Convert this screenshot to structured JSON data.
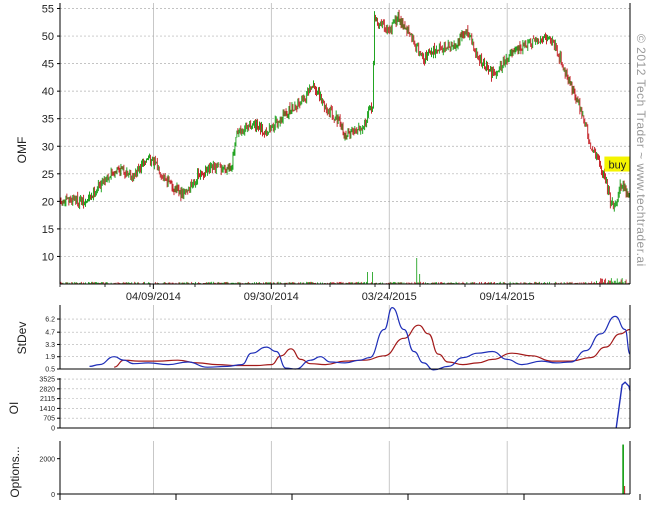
{
  "watermark": "© 2012 Tech Trader ~ www.techtrader.ai",
  "colors": {
    "up": "#0a9a0a",
    "down": "#c0141a",
    "grid": "#b0b0b0",
    "stdev_fast": "#1f2fb8",
    "stdev_slow": "#a31a1a",
    "oi": "#1f2fb8",
    "options": "#0a9a0a",
    "buy_fill": "#f4f400"
  },
  "chart_data": [
    {
      "type": "line",
      "panel": "price",
      "ylabel": "OMF",
      "ylim": [
        5,
        56
      ],
      "yticks": [
        10,
        15,
        20,
        25,
        30,
        35,
        40,
        45,
        50,
        55
      ],
      "x_tick_labels": [
        "04/09/2014",
        "09/30/2014",
        "03/24/2015",
        "09/14/2015"
      ],
      "x_tick_index": [
        95,
        215,
        335,
        455
      ],
      "n_days": 580,
      "price_path": [
        [
          0,
          19.5
        ],
        [
          15,
          20.5
        ],
        [
          25,
          19.5
        ],
        [
          45,
          24
        ],
        [
          60,
          26
        ],
        [
          75,
          24.5
        ],
        [
          90,
          28
        ],
        [
          100,
          26
        ],
        [
          115,
          22.5
        ],
        [
          125,
          21
        ],
        [
          140,
          24.5
        ],
        [
          155,
          26
        ],
        [
          170,
          26
        ],
        [
          175,
          27
        ],
        [
          180,
          32
        ],
        [
          195,
          34
        ],
        [
          210,
          32.5
        ],
        [
          230,
          36
        ],
        [
          250,
          39
        ],
        [
          258,
          41
        ],
        [
          270,
          37
        ],
        [
          282,
          35
        ],
        [
          290,
          32
        ],
        [
          300,
          33
        ],
        [
          310,
          34
        ],
        [
          318,
          37.5
        ],
        [
          320,
          53
        ],
        [
          335,
          51
        ],
        [
          345,
          53.5
        ],
        [
          360,
          49
        ],
        [
          370,
          46
        ],
        [
          385,
          48
        ],
        [
          400,
          48
        ],
        [
          415,
          51
        ],
        [
          425,
          46
        ],
        [
          440,
          43
        ],
        [
          455,
          46
        ],
        [
          470,
          48
        ],
        [
          485,
          49
        ],
        [
          495,
          50
        ],
        [
          505,
          48
        ],
        [
          515,
          43
        ],
        [
          525,
          39
        ],
        [
          533,
          35
        ],
        [
          540,
          30
        ],
        [
          550,
          26
        ],
        [
          555,
          24
        ],
        [
          560,
          20
        ],
        [
          565,
          19
        ],
        [
          570,
          23
        ],
        [
          580,
          21
        ]
      ],
      "event_label": "buy",
      "event_index": 557,
      "event_price": 26.5
    },
    {
      "type": "line",
      "panel": "stdev",
      "ylabel": "StDev",
      "ylim": [
        0.5,
        7.8
      ],
      "yticks": [
        "6.2",
        "4.7",
        "3.3",
        "1.9",
        "0.5"
      ],
      "series": [
        {
          "name": "",
          "points": [
            [
              30,
              0.8
            ],
            [
              40,
              1.0
            ],
            [
              55,
              1.9
            ],
            [
              65,
              1.5
            ],
            [
              75,
              1.1
            ],
            [
              90,
              1.2
            ],
            [
              110,
              1.0
            ],
            [
              130,
              1.3
            ],
            [
              150,
              0.7
            ],
            [
              170,
              0.8
            ],
            [
              185,
              1.0
            ],
            [
              195,
              2.3
            ],
            [
              210,
              3.0
            ],
            [
              220,
              2.5
            ],
            [
              230,
              0.6
            ],
            [
              240,
              0.5
            ],
            [
              255,
              1.5
            ],
            [
              265,
              1.9
            ],
            [
              275,
              1.3
            ],
            [
              290,
              1.2
            ],
            [
              305,
              1.5
            ],
            [
              315,
              1.8
            ],
            [
              330,
              5.0
            ],
            [
              338,
              7.5
            ],
            [
              350,
              5.0
            ],
            [
              360,
              2.5
            ],
            [
              370,
              1.2
            ],
            [
              380,
              0.4
            ],
            [
              395,
              0.8
            ],
            [
              410,
              1.8
            ],
            [
              425,
              2.3
            ],
            [
              440,
              2.5
            ],
            [
              455,
              1.6
            ],
            [
              470,
              1.0
            ],
            [
              490,
              1.4
            ],
            [
              505,
              1.2
            ],
            [
              520,
              1.3
            ],
            [
              535,
              2.6
            ],
            [
              550,
              4.5
            ],
            [
              565,
              6.5
            ],
            [
              575,
              5.0
            ],
            [
              580,
              2.2
            ]
          ]
        },
        {
          "name": "",
          "points": [
            [
              55,
              0.7
            ],
            [
              65,
              1.5
            ],
            [
              80,
              1.4
            ],
            [
              100,
              1.4
            ],
            [
              120,
              1.5
            ],
            [
              140,
              1.2
            ],
            [
              160,
              1.0
            ],
            [
              180,
              0.9
            ],
            [
              200,
              0.9
            ],
            [
              215,
              1.0
            ],
            [
              225,
              2.0
            ],
            [
              235,
              2.8
            ],
            [
              245,
              1.6
            ],
            [
              255,
              1.1
            ],
            [
              270,
              1.0
            ],
            [
              290,
              1.4
            ],
            [
              310,
              1.5
            ],
            [
              330,
              2.0
            ],
            [
              350,
              4.0
            ],
            [
              365,
              5.5
            ],
            [
              375,
              4.5
            ],
            [
              385,
              2.2
            ],
            [
              395,
              1.3
            ],
            [
              410,
              1.0
            ],
            [
              425,
              1.2
            ],
            [
              440,
              1.6
            ],
            [
              460,
              2.3
            ],
            [
              480,
              2.0
            ],
            [
              500,
              1.4
            ],
            [
              520,
              1.4
            ],
            [
              540,
              1.8
            ],
            [
              555,
              3.0
            ],
            [
              570,
              4.5
            ],
            [
              580,
              5.0
            ]
          ]
        }
      ]
    },
    {
      "type": "line",
      "panel": "oi",
      "ylabel": "OI",
      "ylim": [
        0,
        3600
      ],
      "yticks": [
        "3525",
        "2820",
        "2115",
        "1410",
        "705",
        "0"
      ],
      "series": [
        {
          "name": "",
          "points": [
            [
              566,
              0
            ],
            [
              572,
              3100
            ],
            [
              575,
              3300
            ],
            [
              579,
              3000
            ],
            [
              580,
              2700
            ]
          ]
        }
      ]
    },
    {
      "type": "bar",
      "panel": "options",
      "ylabel": "Options...",
      "ylim": [
        0,
        3000
      ],
      "yticks": [
        "2000",
        "0"
      ],
      "bars": [
        {
          "x": 573,
          "value": 2800
        }
      ]
    }
  ]
}
